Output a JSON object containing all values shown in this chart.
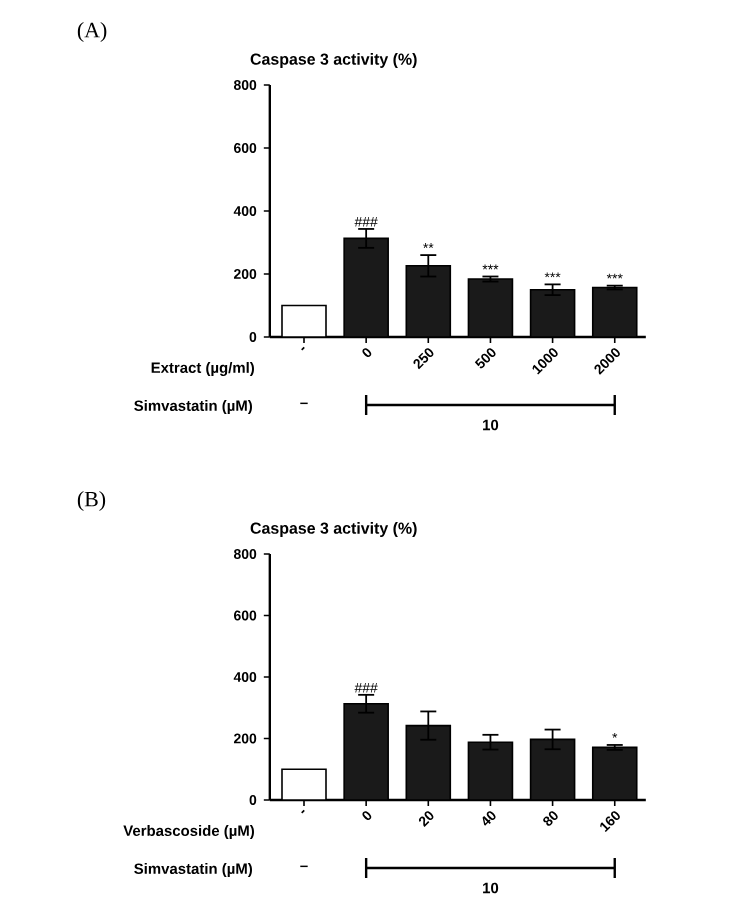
{
  "chart_data": [
    {
      "type": "bar",
      "ylabel": "Caspase 3 activity (%)",
      "xlabel": "Extract (µg/ml)",
      "categories": [
        "-",
        "0",
        "250",
        "500",
        "1000",
        "2000"
      ],
      "values": [
        100,
        313,
        226,
        184,
        150,
        157
      ],
      "errors": [
        null,
        30,
        34,
        8,
        17,
        6
      ],
      "colors": [
        "#ffffff",
        "#1a1a1a",
        "#1a1a1a",
        "#1a1a1a",
        "#1a1a1a",
        "#1a1a1a"
      ],
      "ylim": [
        0,
        800
      ],
      "yticks": [
        0,
        200,
        400,
        600,
        800
      ],
      "annotations": [
        "(A)",
        "Simvastatin (µM)",
        "–",
        "10",
        {
          "text": "###",
          "x": "0",
          "y": 343
        },
        {
          "text": "**",
          "x": "250",
          "y": 260
        },
        {
          "text": "***",
          "x": "500",
          "y": 192
        },
        {
          "text": "***",
          "x": "1000",
          "y": 167
        },
        {
          "text": "***",
          "x": "2000",
          "y": 163
        }
      ]
    },
    {
      "type": "bar",
      "ylabel": "Caspase 3 activity (%)",
      "xlabel": "Verbascoside (µM)",
      "categories": [
        "-",
        "0",
        "20",
        "40",
        "80",
        "160"
      ],
      "values": [
        100,
        313,
        242,
        188,
        197,
        171
      ],
      "errors": [
        null,
        29,
        46,
        24,
        32,
        8
      ],
      "colors": [
        "#ffffff",
        "#1a1a1a",
        "#1a1a1a",
        "#1a1a1a",
        "#1a1a1a",
        "#1a1a1a"
      ],
      "ylim": [
        0,
        800
      ],
      "yticks": [
        0,
        200,
        400,
        600,
        800
      ],
      "annotations": [
        "(B)",
        "Simvastatin (µM)",
        "–",
        "10",
        {
          "text": "###",
          "x": "0",
          "y": 342
        },
        {
          "text": "*",
          "x": "160",
          "y": 179
        }
      ]
    }
  ]
}
